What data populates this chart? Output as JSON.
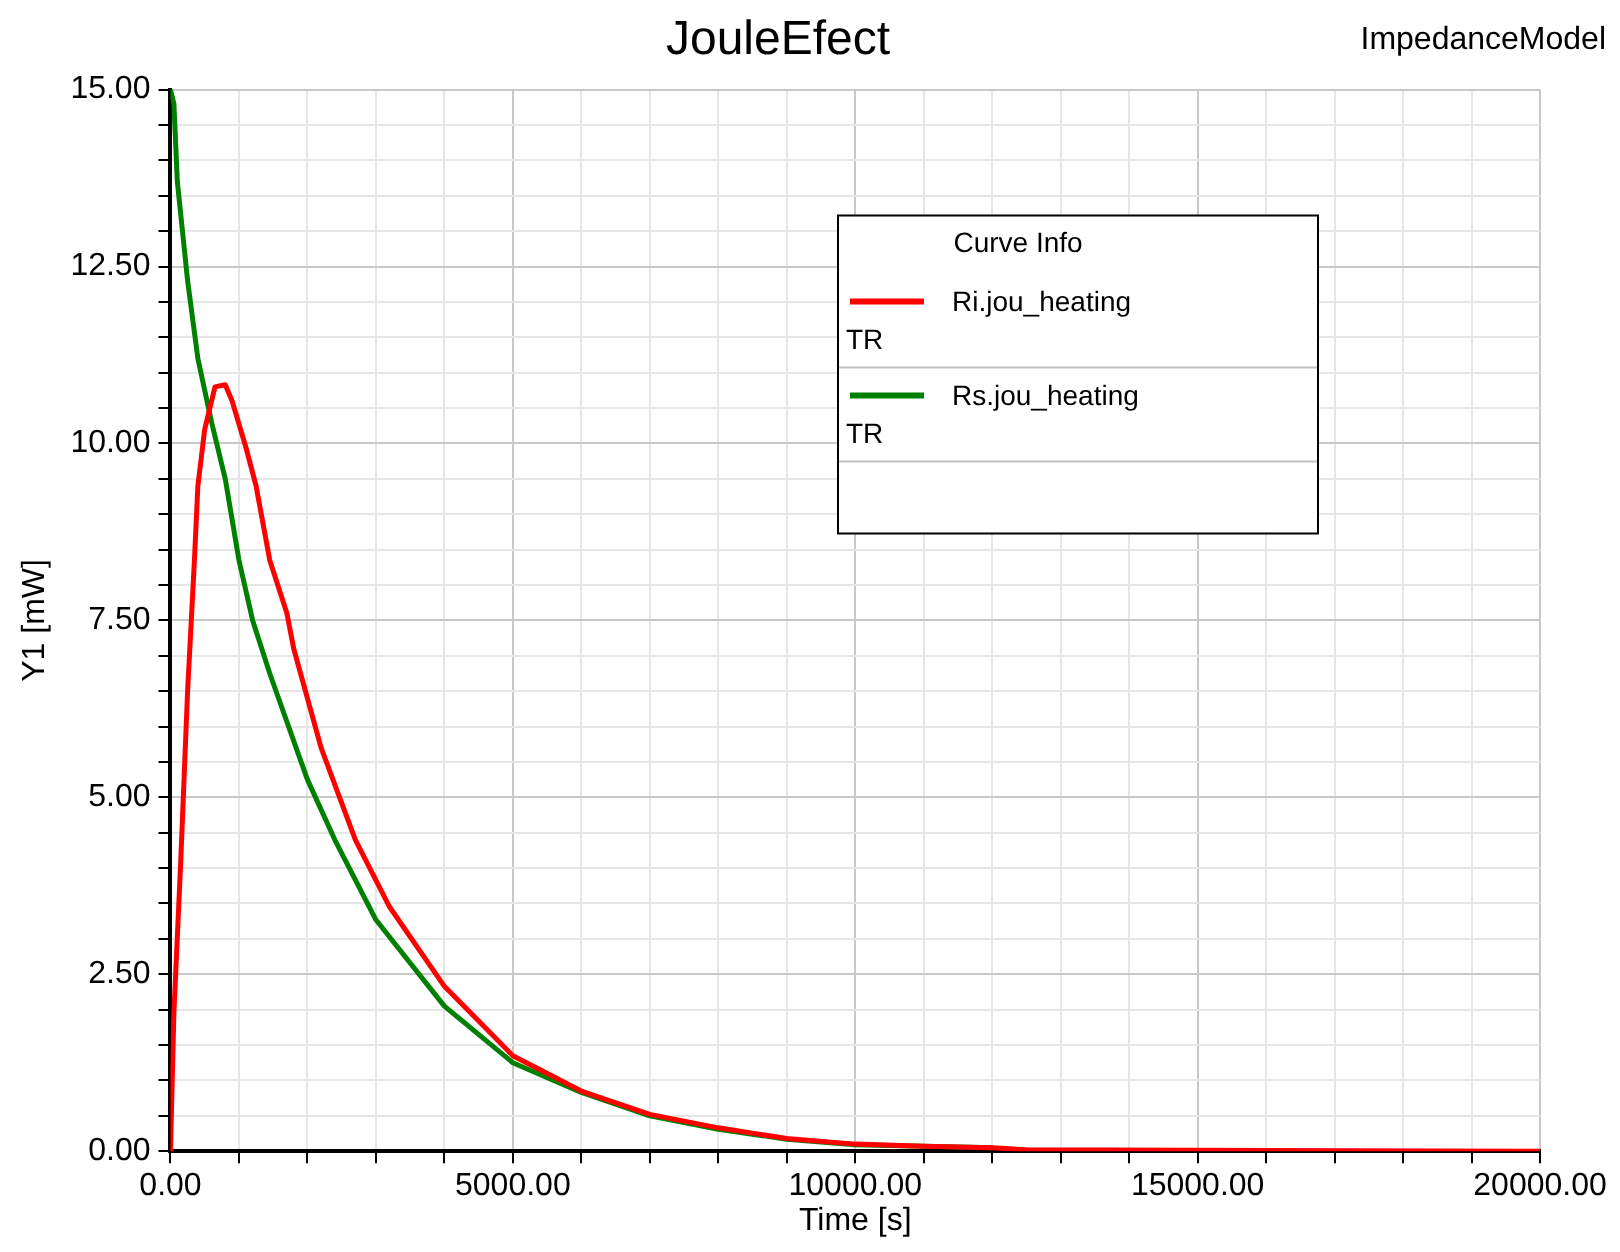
{
  "chart_data": {
    "type": "line",
    "title": "JouleEfect",
    "xlabel": "Time [s]",
    "ylabel": "Y1 [mW]",
    "legend_title": "Curve Info",
    "legend": "top right",
    "grid": true,
    "marker": "none",
    "line_style": "solid",
    "annotations": [
      "ImpedanceModel",
      "TR",
      "TR"
    ],
    "xlim": [
      0,
      20000
    ],
    "ylim": [
      0,
      15
    ],
    "xticks": [
      {
        "value": 0,
        "label": "0.00"
      },
      {
        "value": 1000,
        "label": null
      },
      {
        "value": 2000,
        "label": null
      },
      {
        "value": 3000,
        "label": null
      },
      {
        "value": 4000,
        "label": null
      },
      {
        "value": 5000,
        "label": "5000.00"
      },
      {
        "value": 6000,
        "label": null
      },
      {
        "value": 7000,
        "label": null
      },
      {
        "value": 8000,
        "label": null
      },
      {
        "value": 9000,
        "label": null
      },
      {
        "value": 10000,
        "label": "10000.00"
      },
      {
        "value": 11000,
        "label": null
      },
      {
        "value": 12000,
        "label": null
      },
      {
        "value": 13000,
        "label": null
      },
      {
        "value": 14000,
        "label": null
      },
      {
        "value": 15000,
        "label": "15000.00"
      },
      {
        "value": 16000,
        "label": null
      },
      {
        "value": 17000,
        "label": null
      },
      {
        "value": 18000,
        "label": null
      },
      {
        "value": 19000,
        "label": null
      },
      {
        "value": 20000,
        "label": "20000.00"
      }
    ],
    "yticks": [
      {
        "value": 0,
        "label": "0.00"
      },
      {
        "value": 0.5,
        "label": null
      },
      {
        "value": 1,
        "label": null
      },
      {
        "value": 1.5,
        "label": null
      },
      {
        "value": 2,
        "label": null
      },
      {
        "value": 2.5,
        "label": "2.50"
      },
      {
        "value": 3,
        "label": null
      },
      {
        "value": 3.5,
        "label": null
      },
      {
        "value": 4,
        "label": null
      },
      {
        "value": 4.5,
        "label": null
      },
      {
        "value": 5,
        "label": "5.00"
      },
      {
        "value": 5.5,
        "label": null
      },
      {
        "value": 6,
        "label": null
      },
      {
        "value": 6.5,
        "label": null
      },
      {
        "value": 7,
        "label": null
      },
      {
        "value": 7.5,
        "label": "7.50"
      },
      {
        "value": 8,
        "label": null
      },
      {
        "value": 8.5,
        "label": null
      },
      {
        "value": 9,
        "label": null
      },
      {
        "value": 9.5,
        "label": null
      },
      {
        "value": 10,
        "label": "10.00"
      },
      {
        "value": 10.5,
        "label": null
      },
      {
        "value": 11,
        "label": null
      },
      {
        "value": 11.5,
        "label": null
      },
      {
        "value": 12,
        "label": null
      },
      {
        "value": 12.5,
        "label": "12.50"
      },
      {
        "value": 13,
        "label": null
      },
      {
        "value": 13.5,
        "label": null
      },
      {
        "value": 14,
        "label": null
      },
      {
        "value": 14.5,
        "label": null
      },
      {
        "value": 15,
        "label": "15.00"
      }
    ],
    "series": [
      {
        "name": "Ri.jou_heating",
        "color": "#ff0000",
        "x": [
          0,
          50,
          150,
          250,
          350,
          400,
          500,
          650,
          800,
          900,
          1100,
          1250,
          1450,
          1700,
          1800,
          2200,
          2700,
          3200,
          4000,
          5000,
          6000,
          7000,
          8000,
          9000,
          10000,
          11000,
          12000,
          12500,
          20000
        ],
        "values": [
          0,
          1.95,
          4.1,
          6.5,
          8.35,
          9.4,
          10.2,
          10.8,
          10.83,
          10.6,
          9.95,
          9.4,
          8.35,
          7.6,
          7.1,
          5.7,
          4.4,
          3.45,
          2.33,
          1.35,
          0.85,
          0.52,
          0.33,
          0.18,
          0.1,
          0.07,
          0.05,
          0.02,
          0
        ]
      },
      {
        "name": "Rs.jou_heating",
        "color": "#008000",
        "x": [
          0,
          50,
          100,
          250,
          400,
          600,
          800,
          1000,
          1200,
          1450,
          2000,
          2400,
          3000,
          4000,
          5000,
          6000,
          7000,
          8000,
          9000,
          10000,
          12000
        ],
        "values": [
          15,
          14.8,
          13.7,
          12.3,
          11.2,
          10.3,
          9.5,
          8.35,
          7.5,
          6.75,
          5.25,
          4.4,
          3.27,
          2.05,
          1.25,
          0.83,
          0.5,
          0.31,
          0.17,
          0.09,
          0.05
        ]
      }
    ]
  }
}
